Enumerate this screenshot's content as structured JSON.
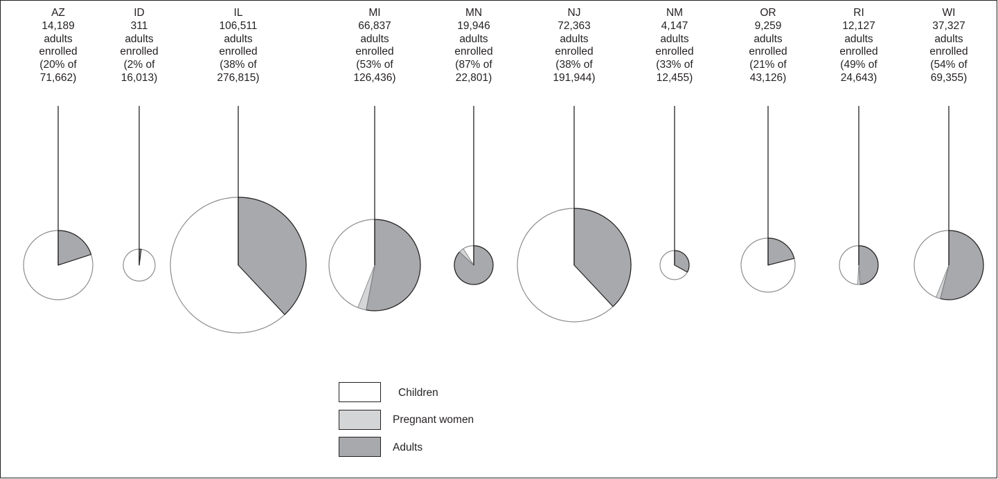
{
  "chart_data": {
    "type": "pie",
    "charts": [
      {
        "state": "AZ",
        "count": "14,189",
        "line2": "adults",
        "line3": "enrolled",
        "pct": "(20% of",
        "total": "71,662)",
        "children": 80,
        "pregnant": 0,
        "adults": 20
      },
      {
        "state": "ID",
        "count": "311",
        "line2": "adults",
        "line3": "enrolled",
        "pct": "(2% of",
        "total": "16,013)",
        "children": 98,
        "pregnant": 0,
        "adults": 2
      },
      {
        "state": "IL",
        "count": "106,511",
        "line2": "adults",
        "line3": "enrolled",
        "pct": "(38% of",
        "total": "276,815)",
        "children": 62,
        "pregnant": 0,
        "adults": 38
      },
      {
        "state": "MI",
        "count": "66,837",
        "line2": "adults",
        "line3": "enrolled",
        "pct": "(53% of",
        "total": "126,436)",
        "children": 44,
        "pregnant": 3,
        "adults": 53
      },
      {
        "state": "MN",
        "count": "19,946",
        "line2": "adults",
        "line3": "enrolled",
        "pct": "(87% of",
        "total": "22,801)",
        "children": 9,
        "pregnant": 4,
        "adults": 87
      },
      {
        "state": "NJ",
        "count": "72,363",
        "line2": "adults",
        "line3": "enrolled",
        "pct": "(38% of",
        "total": "191,944)",
        "children": 62,
        "pregnant": 0,
        "adults": 38
      },
      {
        "state": "NM",
        "count": "4,147",
        "line2": "adults",
        "line3": "enrolled",
        "pct": "(33% of",
        "total": "12,455)",
        "children": 67,
        "pregnant": 0,
        "adults": 33
      },
      {
        "state": "OR",
        "count": "9,259",
        "line2": "adults",
        "line3": "enrolled",
        "pct": "(21% of",
        "total": "43,126)",
        "children": 79,
        "pregnant": 0,
        "adults": 21
      },
      {
        "state": "RI",
        "count": "12,127",
        "line2": "adults",
        "line3": "enrolled",
        "pct": "(49% of",
        "total": "24,643)",
        "children": 49,
        "pregnant": 2,
        "adults": 49
      },
      {
        "state": "WI",
        "count": "37,327",
        "line2": "adults",
        "line3": "enrolled",
        "pct": "(54% of",
        "total": "69,355)",
        "children": 44,
        "pregnant": 2,
        "adults": 54
      }
    ],
    "legend": {
      "placement": "bottom-center",
      "items": [
        {
          "label": "Children",
          "color": "#ffffff"
        },
        {
          "label": "Pregnant women",
          "color": "#d4d5d6"
        },
        {
          "label": "Adults",
          "color": "#a7a9ac"
        }
      ]
    }
  },
  "colors": {
    "outline": "#231f20",
    "children_outline": "#8a8c8e"
  }
}
